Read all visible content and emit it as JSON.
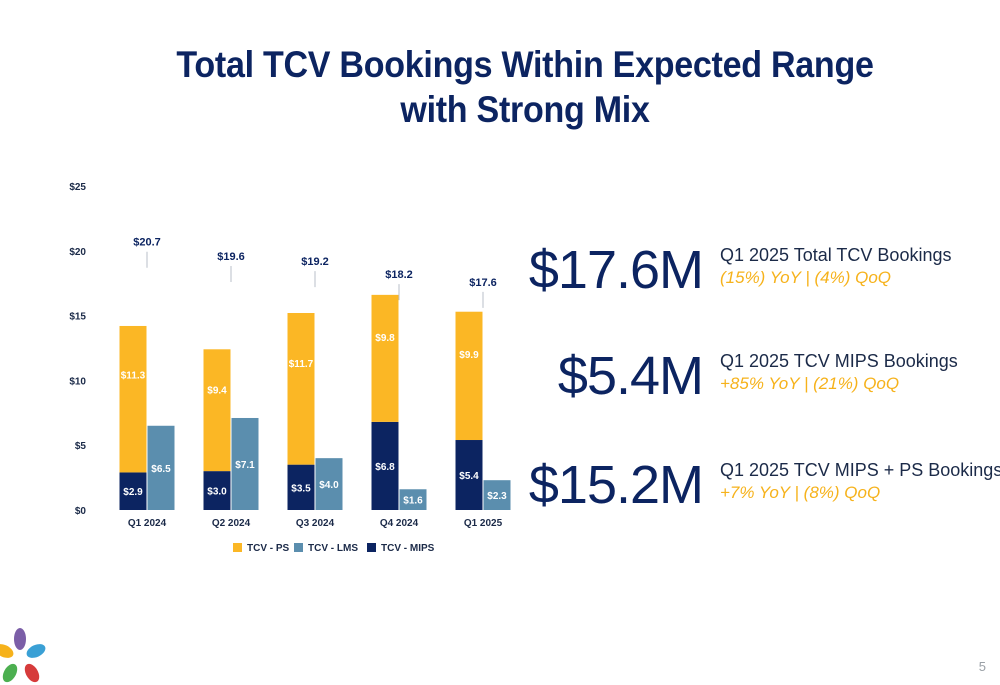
{
  "title_line1": "Total TCV Bookings Within Expected Range",
  "title_line2": "with Strong Mix",
  "chart_data": {
    "type": "bar",
    "stacked_partially": true,
    "categories": [
      "Q1 2024",
      "Q2 2024",
      "Q3 2024",
      "Q4 2024",
      "Q1 2025"
    ],
    "series": [
      {
        "name": "TCV - PS",
        "values": [
          11.3,
          9.4,
          11.7,
          9.8,
          9.9
        ],
        "labels": [
          "$11.3",
          "$9.4",
          "$11.7",
          "$9.8",
          "$9.9"
        ],
        "color": "#fbb725",
        "stack": "a"
      },
      {
        "name": "TCV - LMS",
        "values": [
          6.5,
          7.1,
          4.0,
          1.6,
          2.3
        ],
        "labels": [
          "$6.5",
          "$7.1",
          "$4.0",
          "$1.6",
          "$2.3"
        ],
        "color": "#5b8eae",
        "stack": "b"
      },
      {
        "name": "TCV - MIPS",
        "values": [
          2.9,
          3.0,
          3.5,
          6.8,
          5.4
        ],
        "labels": [
          "$2.9",
          "$3.0",
          "$3.5",
          "$6.8",
          "$5.4"
        ],
        "color": "#0c2461",
        "stack": "a"
      }
    ],
    "totals": [
      20.7,
      19.6,
      19.2,
      18.2,
      17.6
    ],
    "total_labels": [
      "$20.7",
      "$19.6",
      "$19.2",
      "$18.2",
      "$17.6"
    ],
    "y_ticks": [
      "$0",
      "$5",
      "$10",
      "$15",
      "$20",
      "$25"
    ],
    "ylim": [
      0,
      25
    ],
    "legend_position": "bottom",
    "grid": false
  },
  "metrics": [
    {
      "value": "$17.6M",
      "label": "Q1 2025 Total TCV Bookings",
      "change": "(15%) YoY | (4%) QoQ"
    },
    {
      "value": "$5.4M",
      "label": "Q1 2025 TCV MIPS Bookings",
      "change": "+85% YoY | (21%) QoQ"
    },
    {
      "value": "$15.2M",
      "label": "Q1 2025 TCV MIPS + PS Bookings",
      "change": "+7% YoY | (8%) QoQ"
    }
  ],
  "page_number": "5",
  "colors": {
    "title": "#0c2461",
    "accent": "#f6b21b"
  }
}
